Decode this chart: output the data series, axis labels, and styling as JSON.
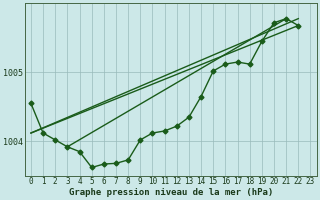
{
  "background_color": "#cce8e8",
  "line_color": "#1a5c1a",
  "grid_color": "#99bbbb",
  "title": "Graphe pression niveau de la mer (hPa)",
  "title_fontsize": 6.5,
  "ylim": [
    1003.5,
    1006.0
  ],
  "xlim": [
    -0.5,
    23.5
  ],
  "yticks": [
    1004,
    1005
  ],
  "xticks": [
    0,
    1,
    2,
    3,
    4,
    5,
    6,
    7,
    8,
    9,
    10,
    11,
    12,
    13,
    14,
    15,
    16,
    17,
    18,
    19,
    20,
    21,
    22,
    23
  ],
  "series1_x": [
    0,
    1,
    2,
    3,
    4,
    5,
    6,
    7,
    8,
    9,
    10,
    11,
    12,
    13,
    14,
    15,
    16,
    17,
    18,
    19,
    20,
    21,
    22
  ],
  "series1_y": [
    1004.55,
    1004.12,
    1004.02,
    1003.92,
    1003.85,
    1003.62,
    1003.67,
    1003.68,
    1003.73,
    1004.02,
    1004.12,
    1004.15,
    1004.22,
    1004.35,
    1004.65,
    1005.02,
    1005.12,
    1005.15,
    1005.12,
    1005.45,
    1005.72,
    1005.78,
    1005.68
  ],
  "line1_x": [
    0,
    22
  ],
  "line1_y": [
    1004.12,
    1005.68
  ],
  "line2_x": [
    0,
    22
  ],
  "line2_y": [
    1004.12,
    1005.78
  ],
  "line3_x": [
    3,
    21
  ],
  "line3_y": [
    1003.92,
    1005.78
  ],
  "marker_size": 2.5,
  "line_width": 1.0,
  "tick_fontsize": 5.5,
  "tick_color": "#1a3a1a"
}
